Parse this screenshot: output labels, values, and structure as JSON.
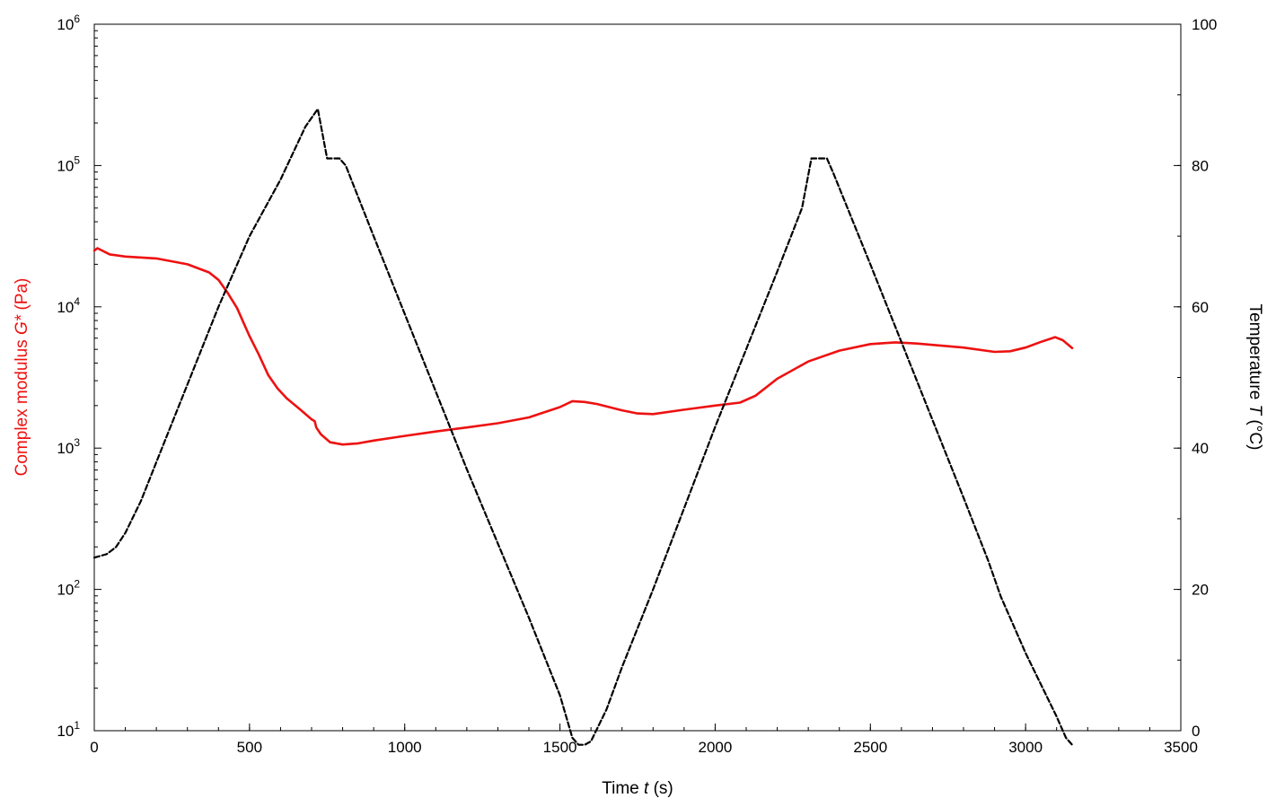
{
  "chart_data": {
    "type": "line",
    "xlabel": {
      "prefix": "Time ",
      "symbol": "t",
      "suffix": " (s)"
    },
    "ylabel_left": {
      "prefix": "Complex modulus ",
      "symbol": "G*",
      "suffix": " (Pa)"
    },
    "ylabel_right": {
      "prefix": "Temperature ",
      "symbol": "T",
      "suffix": " (°C)"
    },
    "xlim": [
      0,
      3500
    ],
    "ylim_left": [
      10,
      1000000
    ],
    "ylim_right": [
      0,
      100
    ],
    "left_scale": "log",
    "right_scale": "linear",
    "grid": false,
    "x_ticks": [
      "0",
      "500",
      "1000",
      "1500",
      "2000",
      "2500",
      "3000",
      "3500"
    ],
    "y_left_ticks": [
      {
        "base": "10",
        "exp": "1"
      },
      {
        "base": "10",
        "exp": "2"
      },
      {
        "base": "10",
        "exp": "3"
      },
      {
        "base": "10",
        "exp": "4"
      },
      {
        "base": "10",
        "exp": "5"
      },
      {
        "base": "10",
        "exp": "6"
      }
    ],
    "y_right_ticks": [
      "0",
      "20",
      "40",
      "60",
      "80",
      "100"
    ],
    "colors": {
      "modulus": "#ee1111",
      "temperature": "#000000",
      "axis": "#000000"
    },
    "series": [
      {
        "key": "modulus",
        "axis": "left",
        "style": "solid",
        "points": [
          [
            0,
            25000
          ],
          [
            10,
            26000
          ],
          [
            50,
            23500
          ],
          [
            100,
            22700
          ],
          [
            200,
            22000
          ],
          [
            300,
            20000
          ],
          [
            370,
            17500
          ],
          [
            400,
            15500
          ],
          [
            430,
            12500
          ],
          [
            460,
            9800
          ],
          [
            480,
            7800
          ],
          [
            500,
            6200
          ],
          [
            530,
            4600
          ],
          [
            560,
            3300
          ],
          [
            590,
            2650
          ],
          [
            620,
            2250
          ],
          [
            660,
            1900
          ],
          [
            700,
            1600
          ],
          [
            710,
            1550
          ],
          [
            715,
            1400
          ],
          [
            730,
            1250
          ],
          [
            760,
            1100
          ],
          [
            800,
            1060
          ],
          [
            850,
            1080
          ],
          [
            900,
            1130
          ],
          [
            1000,
            1220
          ],
          [
            1100,
            1310
          ],
          [
            1200,
            1400
          ],
          [
            1300,
            1500
          ],
          [
            1400,
            1650
          ],
          [
            1500,
            1950
          ],
          [
            1540,
            2150
          ],
          [
            1580,
            2120
          ],
          [
            1620,
            2050
          ],
          [
            1700,
            1850
          ],
          [
            1750,
            1760
          ],
          [
            1800,
            1740
          ],
          [
            1900,
            1870
          ],
          [
            2000,
            2000
          ],
          [
            2080,
            2100
          ],
          [
            2130,
            2350
          ],
          [
            2200,
            3100
          ],
          [
            2300,
            4100
          ],
          [
            2400,
            4900
          ],
          [
            2500,
            5450
          ],
          [
            2580,
            5600
          ],
          [
            2650,
            5500
          ],
          [
            2800,
            5150
          ],
          [
            2900,
            4800
          ],
          [
            2950,
            4850
          ],
          [
            3000,
            5150
          ],
          [
            3050,
            5650
          ],
          [
            3095,
            6100
          ],
          [
            3120,
            5800
          ],
          [
            3150,
            5100
          ]
        ]
      },
      {
        "key": "temperature",
        "axis": "right",
        "style": "dashed",
        "points": [
          [
            0,
            24.5
          ],
          [
            40,
            25
          ],
          [
            70,
            26
          ],
          [
            100,
            28
          ],
          [
            150,
            32.5
          ],
          [
            200,
            38
          ],
          [
            300,
            49
          ],
          [
            400,
            60
          ],
          [
            500,
            70
          ],
          [
            600,
            78
          ],
          [
            680,
            85.5
          ],
          [
            720,
            88
          ],
          [
            750,
            81
          ],
          [
            790,
            81
          ],
          [
            810,
            80
          ],
          [
            900,
            70
          ],
          [
            1000,
            59
          ],
          [
            1100,
            48
          ],
          [
            1200,
            37
          ],
          [
            1300,
            26.5
          ],
          [
            1400,
            16
          ],
          [
            1500,
            5
          ],
          [
            1540,
            -1
          ],
          [
            1560,
            -2
          ],
          [
            1580,
            -2
          ],
          [
            1600,
            -1.5
          ],
          [
            1650,
            3
          ],
          [
            1700,
            9
          ],
          [
            1800,
            20
          ],
          [
            1900,
            31.5
          ],
          [
            2000,
            43
          ],
          [
            2100,
            54
          ],
          [
            2200,
            65
          ],
          [
            2280,
            74
          ],
          [
            2310,
            81
          ],
          [
            2360,
            81
          ],
          [
            2380,
            79
          ],
          [
            2500,
            66
          ],
          [
            2600,
            55
          ],
          [
            2700,
            44
          ],
          [
            2800,
            33
          ],
          [
            2880,
            24
          ],
          [
            2920,
            19
          ],
          [
            3000,
            11
          ],
          [
            3100,
            2
          ],
          [
            3130,
            -1
          ],
          [
            3150,
            -2
          ]
        ]
      }
    ]
  }
}
